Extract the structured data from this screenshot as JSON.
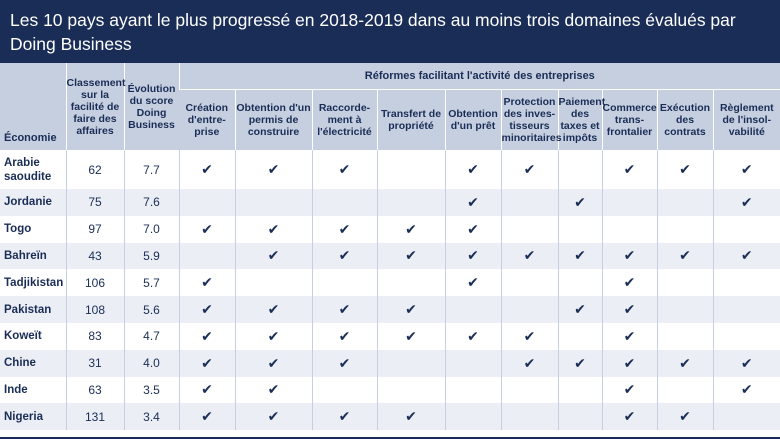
{
  "title": "Les 10 pays ayant le plus progressé en 2018-2019 dans au moins trois domaines évalués par Doing Business",
  "headers": {
    "economy": "Économie",
    "rank": "Classement sur la facilité de faire des affaires",
    "score": "Évolution du score Doing Business",
    "reforms_group": "Réformes facilitant l'activité des entreprises",
    "reforms": [
      "Création d'entre-prise",
      "Obtention d'un permis de construire",
      "Raccorde-ment à l'électricité",
      "Transfert de propriété",
      "Obtention d'un prêt",
      "Protection des inves-tisseurs minoritaires",
      "Paiement des taxes et impôts",
      "Commerce trans-frontalier",
      "Exécution des contrats",
      "Règlement de l'insol-vabilité"
    ]
  },
  "check_symbol": "✔",
  "rows": [
    {
      "country": "Arabie saoudite",
      "rank": "62",
      "score": "7.7",
      "checks": [
        1,
        1,
        1,
        0,
        1,
        1,
        0,
        1,
        1,
        1
      ]
    },
    {
      "country": "Jordanie",
      "rank": "75",
      "score": "7.6",
      "checks": [
        0,
        0,
        0,
        0,
        1,
        0,
        1,
        0,
        0,
        1
      ]
    },
    {
      "country": "Togo",
      "rank": "97",
      "score": "7.0",
      "checks": [
        1,
        1,
        1,
        1,
        1,
        0,
        0,
        0,
        0,
        0
      ]
    },
    {
      "country": "Bahreïn",
      "rank": "43",
      "score": "5.9",
      "checks": [
        0,
        1,
        1,
        1,
        1,
        1,
        1,
        1,
        1,
        1
      ]
    },
    {
      "country": "Tadjikistan",
      "rank": "106",
      "score": "5.7",
      "checks": [
        1,
        0,
        0,
        0,
        1,
        0,
        0,
        1,
        0,
        0
      ]
    },
    {
      "country": "Pakistan",
      "rank": "108",
      "score": "5.6",
      "checks": [
        1,
        1,
        1,
        1,
        0,
        0,
        1,
        1,
        0,
        0
      ]
    },
    {
      "country": "Koweït",
      "rank": "83",
      "score": "4.7",
      "checks": [
        1,
        1,
        1,
        1,
        1,
        1,
        0,
        1,
        0,
        0
      ]
    },
    {
      "country": "Chine",
      "rank": "31",
      "score": "4.0",
      "checks": [
        1,
        1,
        1,
        0,
        0,
        1,
        1,
        1,
        1,
        1
      ]
    },
    {
      "country": "Inde",
      "rank": "63",
      "score": "3.5",
      "checks": [
        1,
        1,
        0,
        0,
        0,
        0,
        0,
        1,
        0,
        1
      ]
    },
    {
      "country": "Nigeria",
      "rank": "131",
      "score": "3.4",
      "checks": [
        1,
        1,
        1,
        1,
        0,
        0,
        0,
        1,
        1,
        0
      ]
    }
  ]
}
